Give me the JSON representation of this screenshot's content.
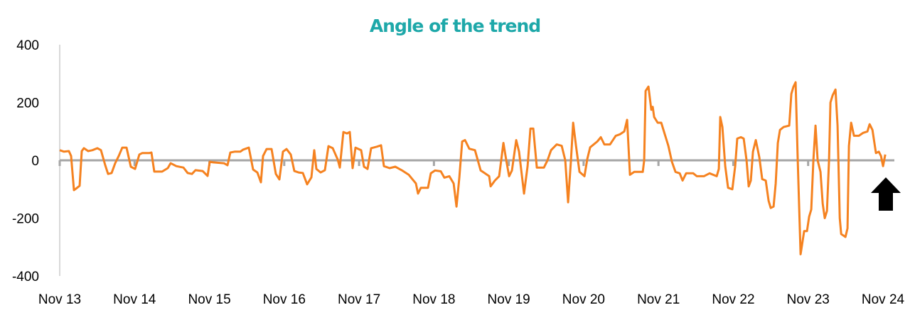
{
  "chart_data": {
    "type": "line",
    "title": "Angle of the trend",
    "xlabel": "",
    "ylabel": "",
    "x_unit": "days since Nov 13",
    "xlim": [
      0,
      11
    ],
    "ylim": [
      -400,
      400
    ],
    "yticks": [
      400,
      200,
      0,
      -200,
      -400
    ],
    "ytick_labels": [
      "400",
      "200",
      "0",
      "-200",
      "-400"
    ],
    "xtick_labels": [
      "Nov 13",
      "Nov 14",
      "Nov 15",
      "Nov 16",
      "Nov 17",
      "Nov 18",
      "Nov 19",
      "Nov 20",
      "Nov 21",
      "Nov 22",
      "Nov 23",
      "Nov 24"
    ],
    "grid": false,
    "legend": "none",
    "colors": {
      "series": "#f58220",
      "title": "#1ea8a9",
      "zero_line": "#a6a6a6",
      "axis": "#d9d9d9",
      "arrow": "#000000"
    },
    "annotation": {
      "type": "arrow-up",
      "points_to_x": 11.0
    },
    "series": [
      {
        "name": "Angle of the trend",
        "points": [
          [
            0,
            35
          ],
          [
            0.057,
            30
          ],
          [
            0.123,
            32
          ],
          [
            0.152,
            15
          ],
          [
            0.19,
            -103
          ],
          [
            0.228,
            -96
          ],
          [
            0.266,
            -88
          ],
          [
            0.294,
            32
          ],
          [
            0.323,
            42
          ],
          [
            0.38,
            32
          ],
          [
            0.437,
            35
          ],
          [
            0.503,
            42
          ],
          [
            0.551,
            35
          ],
          [
            0.608,
            -17
          ],
          [
            0.646,
            -47
          ],
          [
            0.693,
            -44
          ],
          [
            0.741,
            -10
          ],
          [
            0.788,
            15
          ],
          [
            0.836,
            44
          ],
          [
            0.893,
            44
          ],
          [
            0.95,
            -22
          ],
          [
            1.007,
            -30
          ],
          [
            1.064,
            20
          ],
          [
            1.102,
            25
          ],
          [
            1.197,
            25
          ],
          [
            1.225,
            27
          ],
          [
            1.263,
            -39
          ],
          [
            1.368,
            -39
          ],
          [
            1.444,
            -27
          ],
          [
            1.482,
            -10
          ],
          [
            1.558,
            -20
          ],
          [
            1.653,
            -25
          ],
          [
            1.71,
            -44
          ],
          [
            1.767,
            -47
          ],
          [
            1.814,
            -34
          ],
          [
            1.909,
            -37
          ],
          [
            1.976,
            -54
          ],
          [
            2.004,
            -5
          ],
          [
            2.052,
            -7
          ],
          [
            2.194,
            -10
          ],
          [
            2.242,
            -17
          ],
          [
            2.28,
            27
          ],
          [
            2.337,
            30
          ],
          [
            2.413,
            30
          ],
          [
            2.451,
            37
          ],
          [
            2.527,
            44
          ],
          [
            2.584,
            -32
          ],
          [
            2.641,
            -42
          ],
          [
            2.688,
            -76
          ],
          [
            2.717,
            15
          ],
          [
            2.764,
            39
          ],
          [
            2.831,
            39
          ],
          [
            2.888,
            -47
          ],
          [
            2.935,
            -66
          ],
          [
            2.983,
            30
          ],
          [
            3.03,
            39
          ],
          [
            3.087,
            20
          ],
          [
            3.135,
            -37
          ],
          [
            3.192,
            -42
          ],
          [
            3.249,
            -44
          ],
          [
            3.306,
            -83
          ],
          [
            3.363,
            -59
          ],
          [
            3.401,
            35
          ],
          [
            3.429,
            -30
          ],
          [
            3.486,
            -42
          ],
          [
            3.543,
            -34
          ],
          [
            3.591,
            49
          ],
          [
            3.648,
            42
          ],
          [
            3.714,
            3
          ],
          [
            3.743,
            -25
          ],
          [
            3.79,
            98
          ],
          [
            3.838,
            93
          ],
          [
            3.876,
            98
          ],
          [
            3.914,
            -27
          ],
          [
            3.952,
            44
          ],
          [
            4.028,
            35
          ],
          [
            4.066,
            -22
          ],
          [
            4.113,
            -30
          ],
          [
            4.161,
            42
          ],
          [
            4.237,
            47
          ],
          [
            4.294,
            52
          ],
          [
            4.332,
            -20
          ],
          [
            4.408,
            -27
          ],
          [
            4.484,
            -22
          ],
          [
            4.569,
            -34
          ],
          [
            4.664,
            -50
          ],
          [
            4.759,
            -80
          ],
          [
            4.788,
            -115
          ],
          [
            4.826,
            -95
          ],
          [
            4.921,
            -95
          ],
          [
            4.959,
            -45
          ],
          [
            5.016,
            -35
          ],
          [
            5.092,
            -38
          ],
          [
            5.139,
            -60
          ],
          [
            5.206,
            -55
          ],
          [
            5.263,
            -80
          ],
          [
            5.301,
            -160
          ],
          [
            5.339,
            -60
          ],
          [
            5.377,
            65
          ],
          [
            5.415,
            70
          ],
          [
            5.472,
            40
          ],
          [
            5.548,
            35
          ],
          [
            5.624,
            -35
          ],
          [
            5.681,
            -45
          ],
          [
            5.738,
            -55
          ],
          [
            5.757,
            -90
          ],
          [
            5.814,
            -70
          ],
          [
            5.871,
            -55
          ],
          [
            5.928,
            60
          ],
          [
            5.966,
            0
          ],
          [
            6.004,
            -55
          ],
          [
            6.042,
            -35
          ],
          [
            6.099,
            70
          ],
          [
            6.137,
            30
          ],
          [
            6.204,
            -115
          ],
          [
            6.251,
            -20
          ],
          [
            6.289,
            110
          ],
          [
            6.327,
            110
          ],
          [
            6.375,
            -25
          ],
          [
            6.47,
            -25
          ],
          [
            6.517,
            0
          ],
          [
            6.565,
            35
          ],
          [
            6.641,
            55
          ],
          [
            6.707,
            50
          ],
          [
            6.755,
            0
          ],
          [
            6.793,
            -145
          ],
          [
            6.831,
            0
          ],
          [
            6.86,
            130
          ],
          [
            6.898,
            50
          ],
          [
            6.945,
            -40
          ],
          [
            7.011,
            -55
          ],
          [
            7.049,
            5
          ],
          [
            7.087,
            45
          ],
          [
            7.182,
            65
          ],
          [
            7.23,
            80
          ],
          [
            7.277,
            55
          ],
          [
            7.353,
            55
          ],
          [
            7.429,
            85
          ],
          [
            7.486,
            90
          ],
          [
            7.543,
            100
          ],
          [
            7.581,
            140
          ],
          [
            7.619,
            -50
          ],
          [
            7.676,
            -40
          ],
          [
            7.79,
            -40
          ],
          [
            7.809,
            0
          ],
          [
            7.828,
            240
          ],
          [
            7.866,
            255
          ],
          [
            7.904,
            175
          ],
          [
            7.923,
            185
          ],
          [
            7.942,
            150
          ],
          [
            7.99,
            130
          ],
          [
            8.037,
            130
          ],
          [
            8.085,
            90
          ],
          [
            8.132,
            50
          ],
          [
            8.18,
            -5
          ],
          [
            8.227,
            -40
          ],
          [
            8.284,
            -45
          ],
          [
            8.322,
            -70
          ],
          [
            8.37,
            -45
          ],
          [
            8.465,
            -45
          ],
          [
            8.512,
            -55
          ],
          [
            8.607,
            -55
          ],
          [
            8.683,
            -45
          ],
          [
            8.778,
            -55
          ],
          [
            8.807,
            -30
          ],
          [
            8.826,
            150
          ],
          [
            8.854,
            115
          ],
          [
            8.892,
            -20
          ],
          [
            8.93,
            -95
          ],
          [
            8.987,
            -100
          ],
          [
            9.025,
            -20
          ],
          [
            9.053,
            75
          ],
          [
            9.101,
            80
          ],
          [
            9.139,
            75
          ],
          [
            9.177,
            0
          ],
          [
            9.206,
            -90
          ],
          [
            9.234,
            -70
          ],
          [
            9.263,
            30
          ],
          [
            9.301,
            70
          ],
          [
            9.348,
            10
          ],
          [
            9.386,
            -65
          ],
          [
            9.434,
            -70
          ],
          [
            9.472,
            -140
          ],
          [
            9.5,
            -165
          ],
          [
            9.538,
            -160
          ],
          [
            9.567,
            -80
          ],
          [
            9.595,
            60
          ],
          [
            9.624,
            105
          ],
          [
            9.671,
            115
          ],
          [
            9.747,
            120
          ],
          [
            9.776,
            230
          ],
          [
            9.804,
            255
          ],
          [
            9.833,
            270
          ],
          [
            9.861,
            0
          ],
          [
            9.899,
            -325
          ],
          [
            9.947,
            -245
          ],
          [
            9.985,
            -245
          ],
          [
            10.013,
            -195
          ],
          [
            10.042,
            -170
          ],
          [
            10.07,
            0
          ],
          [
            10.099,
            120
          ],
          [
            10.127,
            0
          ],
          [
            10.165,
            -40
          ],
          [
            10.194,
            -150
          ],
          [
            10.222,
            -200
          ],
          [
            10.251,
            -175
          ],
          [
            10.279,
            0
          ],
          [
            10.298,
            200
          ],
          [
            10.327,
            225
          ],
          [
            10.365,
            245
          ],
          [
            10.393,
            120
          ],
          [
            10.422,
            -200
          ],
          [
            10.441,
            -255
          ],
          [
            10.498,
            -265
          ],
          [
            10.526,
            -235
          ],
          [
            10.545,
            50
          ],
          [
            10.574,
            130
          ],
          [
            10.612,
            85
          ],
          [
            10.678,
            85
          ],
          [
            10.735,
            95
          ],
          [
            10.792,
            100
          ],
          [
            10.821,
            125
          ],
          [
            10.859,
            105
          ],
          [
            10.906,
            25
          ],
          [
            10.944,
            30
          ],
          [
            10.973,
            15
          ],
          [
            11.001,
            -20
          ],
          [
            11.03,
            20
          ]
        ]
      }
    ]
  }
}
